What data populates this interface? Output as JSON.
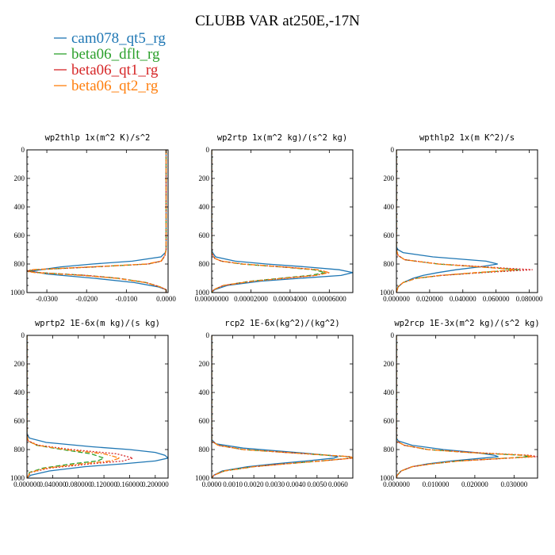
{
  "title": "CLUBB VAR at250E,-17N",
  "legend": [
    {
      "name": "cam078_qt5_rg",
      "color": "#1f77b4",
      "dash": "solid"
    },
    {
      "name": "beta06_dflt_rg",
      "color": "#2ca02c",
      "dash": "longdash"
    },
    {
      "name": "beta06_qt1_rg",
      "color": "#d62728",
      "dash": "dot"
    },
    {
      "name": "beta06_qt2_rg",
      "color": "#ff7f0e",
      "dash": "dashdot"
    }
  ],
  "chart_data": [
    {
      "type": "line",
      "title": "wp2thlp  1x(m^2 K)/s^2",
      "xlim": [
        -0.035,
        0.0005
      ],
      "xticks": [
        -0.03,
        -0.02,
        -0.01,
        0.0
      ],
      "xtick_labels": [
        "-0.0300",
        "-0.0200",
        "-0.0100",
        "0.0000"
      ],
      "ylim": [
        0,
        1000
      ],
      "y_inverted": true,
      "yticks": [
        0,
        200,
        400,
        600,
        800,
        1000
      ],
      "series": [
        {
          "name": "cam078_qt5_rg",
          "y": [
            0,
            700,
            720,
            750,
            780,
            800,
            820,
            840,
            850,
            870,
            900,
            930,
            960,
            980,
            1000
          ],
          "x": [
            0,
            0,
            -0.0002,
            -0.0013,
            -0.0085,
            -0.0185,
            -0.0265,
            -0.0315,
            -0.034,
            -0.03,
            -0.018,
            -0.008,
            -0.002,
            0,
            0
          ]
        },
        {
          "name": "beta06_dflt_rg",
          "y": [
            0,
            700,
            740,
            780,
            800,
            820,
            840,
            850,
            860,
            880,
            900,
            930,
            960,
            980,
            1000
          ],
          "x": [
            0,
            0,
            -0.0003,
            -0.0012,
            -0.0045,
            -0.018,
            -0.033,
            -0.035,
            -0.032,
            -0.02,
            -0.012,
            -0.005,
            -0.0015,
            0,
            0
          ]
        },
        {
          "name": "beta06_qt1_rg",
          "y": [
            0,
            700,
            740,
            780,
            800,
            820,
            840,
            850,
            860,
            880,
            900,
            930,
            960,
            980,
            1000
          ],
          "x": [
            0,
            0,
            -0.0003,
            -0.0012,
            -0.0045,
            -0.018,
            -0.033,
            -0.035,
            -0.032,
            -0.02,
            -0.012,
            -0.005,
            -0.0015,
            0,
            0
          ]
        },
        {
          "name": "beta06_qt2_rg",
          "y": [
            0,
            700,
            740,
            780,
            800,
            820,
            840,
            850,
            860,
            880,
            900,
            930,
            960,
            980,
            1000
          ],
          "x": [
            0,
            0,
            -0.0003,
            -0.0013,
            -0.005,
            -0.019,
            -0.034,
            -0.0355,
            -0.033,
            -0.021,
            -0.0125,
            -0.0052,
            -0.0016,
            0,
            0
          ]
        }
      ]
    },
    {
      "type": "line",
      "title": "wp2rtp  1x(m^2 kg)/(s^2 kg)",
      "xlim": [
        0,
        7.2e-05
      ],
      "xticks": [
        0,
        2e-05,
        4e-05,
        6e-05
      ],
      "xtick_labels": [
        "0.00000000",
        "0.00002000",
        "0.00004000",
        "0.00006000"
      ],
      "ylim": [
        0,
        1000
      ],
      "y_inverted": true,
      "yticks": [
        0,
        200,
        400,
        600,
        800,
        1000
      ],
      "series": [
        {
          "name": "cam078_qt5_rg",
          "y": [
            0,
            700,
            720,
            750,
            780,
            800,
            820,
            840,
            860,
            880,
            900,
            920,
            950,
            980,
            1000
          ],
          "x": [
            0,
            0,
            5e-07,
            2e-06,
            1.2e-05,
            2.8e-05,
            4.8e-05,
            6.5e-05,
            7.2e-05,
            6.6e-05,
            4.5e-05,
            2.5e-05,
            8e-06,
            1.5e-06,
            0
          ]
        },
        {
          "name": "beta06_dflt_rg",
          "y": [
            0,
            720,
            760,
            780,
            800,
            820,
            840,
            860,
            880,
            900,
            920,
            950,
            980,
            1000
          ],
          "x": [
            0,
            0,
            1.5e-06,
            5e-06,
            1.5e-05,
            3.5e-05,
            5.2e-05,
            5.8e-05,
            5e-05,
            3.5e-05,
            2e-05,
            6e-06,
            1e-06,
            0
          ]
        },
        {
          "name": "beta06_qt1_rg",
          "y": [
            0,
            720,
            760,
            780,
            800,
            820,
            840,
            860,
            880,
            900,
            920,
            950,
            980,
            1000
          ],
          "x": [
            0,
            0,
            1.5e-06,
            5e-06,
            1.6e-05,
            3.6e-05,
            5.4e-05,
            6e-05,
            5.3e-05,
            3.7e-05,
            2.1e-05,
            6e-06,
            1e-06,
            0
          ]
        },
        {
          "name": "beta06_qt2_rg",
          "y": [
            0,
            720,
            760,
            780,
            800,
            820,
            840,
            860,
            880,
            900,
            920,
            950,
            980,
            1000
          ],
          "x": [
            0,
            0,
            1.5e-06,
            5e-06,
            1.6e-05,
            3.6e-05,
            5.4e-05,
            6e-05,
            5.3e-05,
            3.7e-05,
            2.1e-05,
            6e-06,
            1e-06,
            0
          ]
        }
      ]
    },
    {
      "type": "line",
      "title": "wpthlp2  1x(m K^2)/s",
      "xlim": [
        0,
        0.085
      ],
      "xticks": [
        0,
        0.02,
        0.04,
        0.06,
        0.08
      ],
      "xtick_labels": [
        "0.000000",
        "0.020000",
        "0.040000",
        "0.060000",
        "0.080000"
      ],
      "ylim": [
        0,
        1000
      ],
      "y_inverted": true,
      "yticks": [
        0,
        200,
        400,
        600,
        800,
        1000
      ],
      "series": [
        {
          "name": "cam078_qt5_rg",
          "y": [
            0,
            680,
            700,
            720,
            750,
            780,
            800,
            820,
            840,
            860,
            880,
            900,
            930,
            960,
            1000
          ],
          "x": [
            0,
            0,
            0.001,
            0.004,
            0.022,
            0.054,
            0.061,
            0.05,
            0.036,
            0.025,
            0.016,
            0.01,
            0.004,
            0.001,
            0
          ]
        },
        {
          "name": "beta06_dflt_rg",
          "y": [
            0,
            700,
            740,
            770,
            800,
            820,
            840,
            860,
            880,
            900,
            930,
            960,
            1000
          ],
          "x": [
            0,
            0,
            0.001,
            0.005,
            0.025,
            0.05,
            0.074,
            0.05,
            0.027,
            0.012,
            0.004,
            0.001,
            0
          ]
        },
        {
          "name": "beta06_qt1_rg",
          "y": [
            0,
            700,
            740,
            770,
            800,
            820,
            840,
            860,
            880,
            900,
            930,
            960,
            1000
          ],
          "x": [
            0,
            0,
            0.001,
            0.005,
            0.026,
            0.053,
            0.082,
            0.052,
            0.027,
            0.012,
            0.004,
            0.001,
            0
          ]
        },
        {
          "name": "beta06_qt2_rg",
          "y": [
            0,
            700,
            740,
            770,
            800,
            820,
            840,
            860,
            880,
            900,
            930,
            960,
            1000
          ],
          "x": [
            0,
            0,
            0.001,
            0.005,
            0.025,
            0.05,
            0.072,
            0.048,
            0.026,
            0.012,
            0.004,
            0.001,
            0
          ]
        }
      ]
    },
    {
      "type": "line",
      "title": "wprtp2  1E-6x(m kg)/(s kg)",
      "xlim": [
        0,
        0.22
      ],
      "xticks": [
        0,
        0.04,
        0.08,
        0.12,
        0.16,
        0.2
      ],
      "xtick_labels": [
        "0.000000",
        "0.040000",
        "0.080000",
        "0.120000",
        "0.160000",
        "0.200000"
      ],
      "ylim": [
        0,
        1000
      ],
      "y_inverted": true,
      "yticks": [
        0,
        200,
        400,
        600,
        800,
        1000
      ],
      "series": [
        {
          "name": "cam078_qt5_rg",
          "y": [
            0,
            680,
            700,
            720,
            750,
            780,
            800,
            820,
            840,
            860,
            880,
            900,
            920,
            950,
            980,
            1000
          ],
          "x": [
            0,
            0,
            0.001,
            0.004,
            0.03,
            0.1,
            0.16,
            0.2,
            0.215,
            0.22,
            0.2,
            0.15,
            0.09,
            0.035,
            0.006,
            0
          ]
        },
        {
          "name": "beta06_dflt_rg",
          "y": [
            0,
            700,
            740,
            770,
            800,
            830,
            860,
            880,
            900,
            930,
            960,
            1000
          ],
          "x": [
            0,
            0,
            0.002,
            0.015,
            0.055,
            0.1,
            0.12,
            0.11,
            0.07,
            0.025,
            0.004,
            0
          ]
        },
        {
          "name": "beta06_qt1_rg",
          "y": [
            0,
            700,
            740,
            770,
            800,
            830,
            860,
            880,
            900,
            930,
            960,
            1000
          ],
          "x": [
            0,
            0,
            0.002,
            0.018,
            0.07,
            0.14,
            0.165,
            0.15,
            0.1,
            0.035,
            0.006,
            0
          ]
        },
        {
          "name": "beta06_qt2_rg",
          "y": [
            0,
            700,
            740,
            770,
            800,
            830,
            860,
            880,
            900,
            930,
            960,
            1000
          ],
          "x": [
            0,
            0,
            0.002,
            0.016,
            0.06,
            0.12,
            0.145,
            0.13,
            0.085,
            0.03,
            0.005,
            0
          ]
        }
      ]
    },
    {
      "type": "line",
      "title": "rcp2  1E-6x(kg^2)/(kg^2)",
      "xlim": [
        0,
        0.0067
      ],
      "xticks": [
        0,
        0.001,
        0.002,
        0.003,
        0.004,
        0.005,
        0.006
      ],
      "xtick_labels": [
        "0.0000",
        "0.0010",
        "0.0020",
        "0.0030",
        "0.0040",
        "0.0050",
        "0.0060"
      ],
      "ylim": [
        0,
        1000
      ],
      "y_inverted": true,
      "yticks": [
        0,
        200,
        400,
        600,
        800,
        1000
      ],
      "series": [
        {
          "name": "cam078_qt5_rg",
          "y": [
            0,
            730,
            760,
            790,
            820,
            840,
            850,
            860,
            880,
            900,
            920,
            950,
            980,
            1000
          ],
          "x": [
            0,
            0,
            0.0002,
            0.0015,
            0.004,
            0.0055,
            0.006,
            0.0058,
            0.0045,
            0.003,
            0.0017,
            0.0005,
            0.0001,
            0
          ]
        },
        {
          "name": "beta06_dflt_rg",
          "y": [
            0,
            740,
            770,
            800,
            830,
            850,
            860,
            880,
            900,
            920,
            950,
            980,
            1000
          ],
          "x": [
            0,
            0,
            0.0003,
            0.0015,
            0.0045,
            0.0065,
            0.0066,
            0.0052,
            0.0035,
            0.002,
            0.0006,
            0.0001,
            0
          ]
        },
        {
          "name": "beta06_qt1_rg",
          "y": [
            0,
            740,
            770,
            800,
            830,
            850,
            860,
            880,
            900,
            920,
            950,
            980,
            1000
          ],
          "x": [
            0,
            0,
            0.0003,
            0.0015,
            0.0045,
            0.0066,
            0.0067,
            0.0052,
            0.0035,
            0.002,
            0.0006,
            0.0001,
            0
          ]
        },
        {
          "name": "beta06_qt2_rg",
          "y": [
            0,
            740,
            770,
            800,
            830,
            850,
            860,
            880,
            900,
            920,
            950,
            980,
            1000
          ],
          "x": [
            0,
            0,
            0.0003,
            0.0015,
            0.0045,
            0.0066,
            0.0067,
            0.0052,
            0.0035,
            0.002,
            0.0006,
            0.0001,
            0
          ]
        }
      ]
    },
    {
      "type": "line",
      "title": "wp2rcp  1E-3x(m^2 kg)/(s^2 kg)",
      "xlim": [
        0,
        0.036
      ],
      "xticks": [
        0,
        0.01,
        0.02,
        0.03
      ],
      "xtick_labels": [
        "0.000000",
        "0.010000",
        "0.020000",
        "0.030000"
      ],
      "ylim": [
        0,
        1000
      ],
      "y_inverted": true,
      "yticks": [
        0,
        200,
        400,
        600,
        800,
        1000
      ],
      "series": [
        {
          "name": "cam078_qt5_rg",
          "y": [
            0,
            720,
            740,
            770,
            800,
            820,
            840,
            850,
            860,
            880,
            900,
            920,
            950,
            980,
            1000
          ],
          "x": [
            0,
            0,
            0.0005,
            0.004,
            0.012,
            0.02,
            0.025,
            0.026,
            0.022,
            0.014,
            0.008,
            0.004,
            0.0012,
            0.0002,
            0
          ]
        },
        {
          "name": "beta06_dflt_rg",
          "y": [
            0,
            740,
            770,
            800,
            820,
            840,
            850,
            860,
            880,
            900,
            920,
            950,
            980,
            1000
          ],
          "x": [
            0,
            0,
            0.002,
            0.008,
            0.018,
            0.032,
            0.034,
            0.028,
            0.016,
            0.009,
            0.004,
            0.0012,
            0.0002,
            0
          ]
        },
        {
          "name": "beta06_qt1_rg",
          "y": [
            0,
            740,
            770,
            800,
            820,
            840,
            850,
            860,
            880,
            900,
            920,
            950,
            980,
            1000
          ],
          "x": [
            0,
            0,
            0.002,
            0.008,
            0.019,
            0.034,
            0.036,
            0.029,
            0.016,
            0.009,
            0.004,
            0.0012,
            0.0002,
            0
          ]
        },
        {
          "name": "beta06_qt2_rg",
          "y": [
            0,
            740,
            770,
            800,
            820,
            840,
            850,
            860,
            880,
            900,
            920,
            950,
            980,
            1000
          ],
          "x": [
            0,
            0,
            0.002,
            0.008,
            0.018,
            0.033,
            0.035,
            0.028,
            0.016,
            0.009,
            0.004,
            0.0012,
            0.0002,
            0
          ]
        }
      ]
    }
  ]
}
